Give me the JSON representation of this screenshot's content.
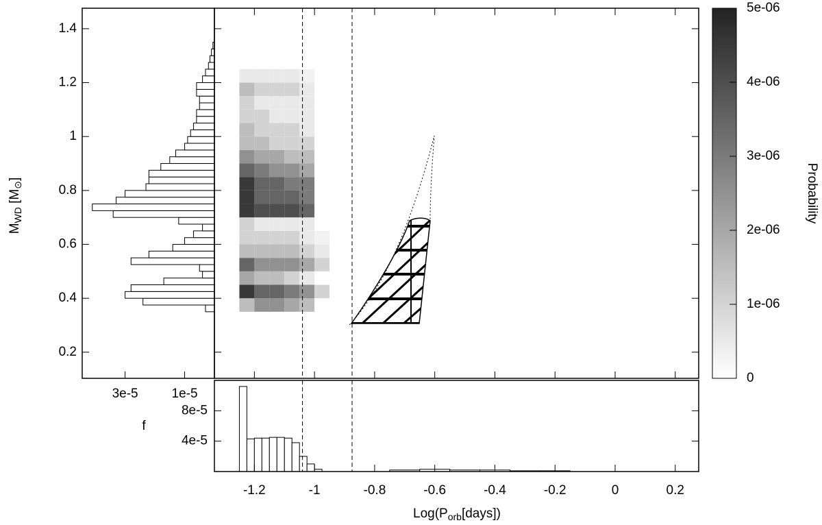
{
  "chart_data": [
    {
      "type": "heatmap",
      "ylabel_parts": [
        "M",
        "WD",
        " [M",
        "⊙",
        "]"
      ],
      "xlim": [
        -1.333,
        0.278
      ],
      "ylim": [
        0.103,
        1.476
      ],
      "yticks": [
        0.2,
        0.4,
        0.6,
        0.8,
        1,
        1.2,
        1.4
      ],
      "x_edges": [
        -1.25,
        -1.2,
        -1.15,
        -1.1,
        -1.05,
        -1.0,
        -0.95
      ],
      "y_edges": [
        0.35,
        0.4,
        0.45,
        0.5,
        0.55,
        0.6,
        0.65,
        0.7,
        0.75,
        0.8,
        0.85,
        0.9,
        0.95,
        1.0,
        1.05,
        1.1,
        1.15,
        1.2,
        1.25
      ],
      "values": [
        [
          1.5e-06,
          2.5e-06,
          2.5e-06,
          2e-06,
          1.5e-06,
          0
        ],
        [
          4.5e-06,
          3.5e-06,
          3.5e-06,
          3e-06,
          2.5e-06,
          1e-06
        ],
        [
          2e-06,
          1.5e-06,
          1.5e-06,
          1e-06,
          5e-07,
          0
        ],
        [
          3.5e-06,
          2.5e-06,
          2.5e-06,
          2.5e-06,
          2e-06,
          1e-06
        ],
        [
          1.5e-06,
          1.5e-06,
          1.5e-06,
          1.5e-06,
          1e-06,
          5e-07
        ],
        [
          1e-06,
          1e-06,
          1e-06,
          1e-06,
          5e-07,
          3e-07
        ],
        [
          1e-06,
          5e-07,
          5e-07,
          5e-07,
          5e-07,
          0
        ],
        [
          4.5e-06,
          4e-06,
          4e-06,
          4e-06,
          3.5e-06,
          0
        ],
        [
          4.5e-06,
          3.5e-06,
          3.5e-06,
          3.5e-06,
          3e-06,
          0
        ],
        [
          4.5e-06,
          3.5e-06,
          3.5e-06,
          3e-06,
          3e-06,
          0
        ],
        [
          3.5e-06,
          3e-06,
          2.5e-06,
          2.5e-06,
          2e-06,
          0
        ],
        [
          2.5e-06,
          2e-06,
          2e-06,
          1.5e-06,
          1.5e-06,
          0
        ],
        [
          1.5e-06,
          1.5e-06,
          1e-06,
          1e-06,
          1e-06,
          0
        ],
        [
          1.5e-06,
          1e-06,
          1e-06,
          1e-06,
          5e-07,
          0
        ],
        [
          1e-06,
          1e-06,
          5e-07,
          5e-07,
          5e-07,
          0
        ],
        [
          1e-06,
          5e-07,
          5e-07,
          5e-07,
          5e-07,
          0
        ],
        [
          1.5e-06,
          1e-06,
          1e-06,
          1e-06,
          5e-07,
          0
        ],
        [
          5e-07,
          5e-07,
          5e-07,
          5e-07,
          3e-07,
          0
        ]
      ],
      "vlines": [
        -1.04,
        -0.875
      ],
      "zlim": [
        0,
        5e-06
      ],
      "zticks": [
        0,
        {
          "value": 1e-06,
          "label": "1e-06"
        },
        {
          "value": 2e-06,
          "label": "2e-06"
        },
        {
          "value": 3e-06,
          "label": "3e-06"
        },
        {
          "value": 4e-06,
          "label": "4e-06"
        },
        {
          "value": 5e-06,
          "label": "5e-06"
        }
      ],
      "zlabel": "Probability"
    },
    {
      "type": "histogram",
      "orientation": "horizontal",
      "xlim": [
        0,
        4.44e-05
      ],
      "xticks": [
        {
          "value": 3e-05,
          "label": "3e-5"
        },
        {
          "value": 1e-05,
          "label": "1e-5"
        }
      ],
      "bins": [
        0.35,
        0.375,
        0.4,
        0.425,
        0.45,
        0.475,
        0.5,
        0.525,
        0.55,
        0.575,
        0.6,
        0.625,
        0.65,
        0.675,
        0.7,
        0.725,
        0.75,
        0.775,
        0.8,
        0.825,
        0.85,
        0.875,
        0.9,
        0.925,
        0.95,
        0.975,
        1.0,
        1.025,
        1.05,
        1.075,
        1.1,
        1.125,
        1.15,
        1.175,
        1.2,
        1.225,
        1.25,
        1.275,
        1.3,
        1.325,
        1.35
      ],
      "values": [
        3e-06,
        2.4e-05,
        3e-05,
        2.8e-05,
        1.7e-05,
        4e-06,
        5e-06,
        2.8e-05,
        2.2e-05,
        1.4e-05,
        1e-05,
        7e-06,
        4e-06,
        1.2e-05,
        3.4e-05,
        4.1e-05,
        3.3e-05,
        3e-05,
        2.3e-05,
        2.2e-05,
        2.2e-05,
        1.8e-05,
        1.5e-05,
        1.3e-05,
        1e-05,
        9e-06,
        8e-06,
        7e-06,
        6e-06,
        6e-06,
        5e-06,
        5e-06,
        6e-06,
        6e-06,
        4e-06,
        3e-06,
        2e-06,
        1.5e-06,
        1e-06,
        5e-07
      ]
    },
    {
      "type": "histogram",
      "orientation": "vertical",
      "xlabel_parts": [
        "Log(P",
        "orb",
        "[days])"
      ],
      "ylabel": "f",
      "xticks": [
        -1.2,
        -1,
        -0.8,
        -0.6,
        -0.4,
        -0.2,
        0,
        0.2
      ],
      "ylim": [
        0,
        0.00012
      ],
      "yticks": [
        {
          "value": 4e-05,
          "label": "4e-5"
        },
        {
          "value": 8e-05,
          "label": "8e-5"
        }
      ],
      "bins": [
        -1.25,
        -1.225,
        -1.2,
        -1.175,
        -1.15,
        -1.125,
        -1.1,
        -1.075,
        -1.05,
        -1.025,
        -1.0,
        -0.975,
        -0.95,
        -0.75,
        -0.65,
        -0.55,
        -0.45,
        -0.35,
        -0.25,
        -0.15
      ],
      "values": [
        0.000112,
        4.3e-05,
        4.4e-05,
        4.4e-05,
        4.5e-05,
        4.5e-05,
        4.4e-05,
        3.8e-05,
        2e-05,
        1e-05,
        3e-06,
        0,
        0,
        2e-06,
        3e-06,
        2e-06,
        2e-06,
        1e-06,
        1e-06
      ]
    }
  ]
}
